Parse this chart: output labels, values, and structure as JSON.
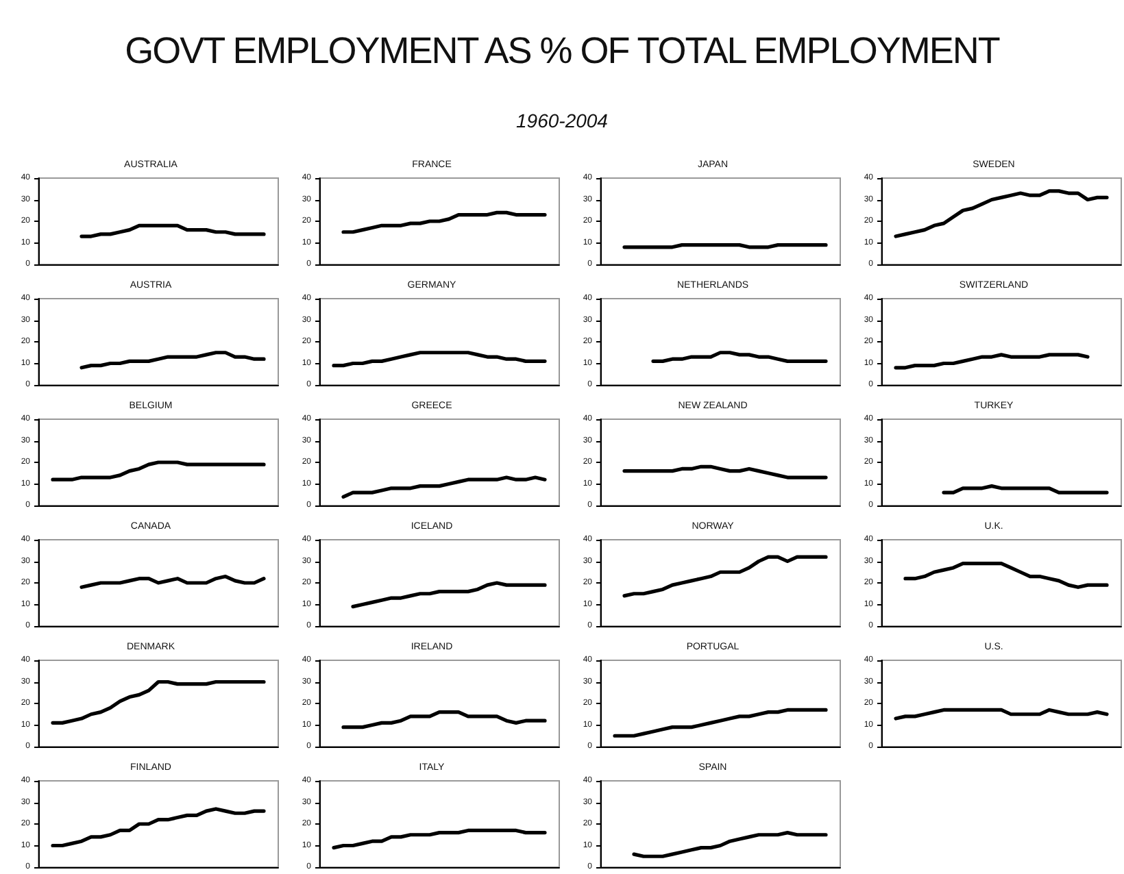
{
  "chart_data": [
    {
      "type": "other",
      "title": "GOVT EMPLOYMENT AS % OF TOTAL EMPLOYMENT",
      "subtitle": "1960-2004"
    },
    {
      "type": "line",
      "title": "AUSTRALIA",
      "categories": [
        null,
        null,
        null,
        null,
        null,
        null,
        null,
        null,
        null,
        null,
        null,
        null,
        null,
        null,
        null,
        null,
        null,
        null,
        null,
        null,
        null,
        null,
        null,
        null,
        null
      ],
      "values": [
        null,
        null,
        null,
        null,
        13,
        13,
        14,
        14,
        15,
        16,
        18,
        18,
        18,
        18,
        18,
        16,
        16,
        16,
        15,
        15,
        14,
        14,
        14,
        14,
        null
      ],
      "color": "#000000",
      "ylim": [
        0,
        40
      ],
      "yticks": [
        0,
        10,
        20,
        30,
        40
      ],
      "tick_labels": "y",
      "marker": "none",
      "line_style": "solid"
    },
    {
      "type": "line",
      "title": "FRANCE",
      "categories": [
        null,
        null,
        null,
        null,
        null,
        null,
        null,
        null,
        null,
        null,
        null,
        null,
        null,
        null,
        null,
        null,
        null,
        null,
        null,
        null,
        null,
        null,
        null,
        null,
        null
      ],
      "values": [
        null,
        null,
        15,
        15,
        16,
        17,
        18,
        18,
        18,
        19,
        19,
        20,
        20,
        21,
        23,
        23,
        23,
        23,
        24,
        24,
        23,
        23,
        23,
        23,
        null
      ],
      "color": "#000000",
      "ylim": [
        0,
        40
      ],
      "yticks": [
        0,
        10,
        20,
        30,
        40
      ],
      "tick_labels": "y",
      "marker": "none",
      "line_style": "solid"
    },
    {
      "type": "line",
      "title": "JAPAN",
      "categories": [
        null,
        null,
        null,
        null,
        null,
        null,
        null,
        null,
        null,
        null,
        null,
        null,
        null,
        null,
        null,
        null,
        null,
        null,
        null,
        null,
        null,
        null,
        null,
        null,
        null
      ],
      "values": [
        null,
        null,
        8,
        8,
        8,
        8,
        8,
        8,
        9,
        9,
        9,
        9,
        9,
        9,
        9,
        8,
        8,
        8,
        9,
        9,
        9,
        9,
        9,
        9,
        null
      ],
      "color": "#000000",
      "ylim": [
        0,
        40
      ],
      "yticks": [
        0,
        10,
        20,
        30,
        40
      ],
      "tick_labels": "y",
      "marker": "none",
      "line_style": "solid"
    },
    {
      "type": "line",
      "title": "SWEDEN",
      "categories": [
        null,
        null,
        null,
        null,
        null,
        null,
        null,
        null,
        null,
        null,
        null,
        null,
        null,
        null,
        null,
        null,
        null,
        null,
        null,
        null,
        null,
        null,
        null,
        null,
        null
      ],
      "values": [
        null,
        13,
        14,
        15,
        16,
        18,
        19,
        22,
        25,
        26,
        28,
        30,
        31,
        32,
        33,
        32,
        32,
        34,
        34,
        33,
        33,
        30,
        31,
        31,
        null
      ],
      "color": "#000000",
      "ylim": [
        0,
        40
      ],
      "yticks": [
        0,
        10,
        20,
        30,
        40
      ],
      "tick_labels": "y",
      "marker": "none",
      "line_style": "solid"
    },
    {
      "type": "line",
      "title": "AUSTRIA",
      "categories": [
        null,
        null,
        null,
        null,
        null,
        null,
        null,
        null,
        null,
        null,
        null,
        null,
        null,
        null,
        null,
        null,
        null,
        null,
        null,
        null,
        null,
        null,
        null,
        null,
        null
      ],
      "values": [
        null,
        null,
        null,
        null,
        8,
        9,
        9,
        10,
        10,
        11,
        11,
        11,
        12,
        13,
        13,
        13,
        13,
        14,
        15,
        15,
        13,
        13,
        12,
        12,
        null
      ],
      "color": "#000000",
      "ylim": [
        0,
        40
      ],
      "yticks": [
        0,
        10,
        20,
        30,
        40
      ],
      "tick_labels": "y",
      "marker": "none",
      "line_style": "solid"
    },
    {
      "type": "line",
      "title": "GERMANY",
      "categories": [
        null,
        null,
        null,
        null,
        null,
        null,
        null,
        null,
        null,
        null,
        null,
        null,
        null,
        null,
        null,
        null,
        null,
        null,
        null,
        null,
        null,
        null,
        null,
        null,
        null
      ],
      "values": [
        null,
        9,
        9,
        10,
        10,
        11,
        11,
        12,
        13,
        14,
        15,
        15,
        15,
        15,
        15,
        15,
        14,
        13,
        13,
        12,
        12,
        11,
        11,
        11,
        null
      ],
      "color": "#000000",
      "ylim": [
        0,
        40
      ],
      "yticks": [
        0,
        10,
        20,
        30,
        40
      ],
      "tick_labels": "y",
      "marker": "none",
      "line_style": "solid"
    },
    {
      "type": "line",
      "title": "NETHERLANDS",
      "categories": [
        null,
        null,
        null,
        null,
        null,
        null,
        null,
        null,
        null,
        null,
        null,
        null,
        null,
        null,
        null,
        null,
        null,
        null,
        null,
        null,
        null,
        null,
        null,
        null,
        null
      ],
      "values": [
        null,
        null,
        null,
        null,
        null,
        11,
        11,
        12,
        12,
        13,
        13,
        13,
        15,
        15,
        14,
        14,
        13,
        13,
        12,
        11,
        11,
        11,
        11,
        11,
        null
      ],
      "color": "#000000",
      "ylim": [
        0,
        40
      ],
      "yticks": [
        0,
        10,
        20,
        30,
        40
      ],
      "tick_labels": "y",
      "marker": "none",
      "line_style": "solid"
    },
    {
      "type": "line",
      "title": "SWITZERLAND",
      "categories": [
        null,
        null,
        null,
        null,
        null,
        null,
        null,
        null,
        null,
        null,
        null,
        null,
        null,
        null,
        null,
        null,
        null,
        null,
        null,
        null,
        null,
        null,
        null,
        null,
        null
      ],
      "values": [
        null,
        8,
        8,
        9,
        9,
        9,
        10,
        10,
        11,
        12,
        13,
        13,
        14,
        13,
        13,
        13,
        13,
        14,
        14,
        14,
        14,
        13,
        null,
        null,
        null
      ],
      "color": "#000000",
      "ylim": [
        0,
        40
      ],
      "yticks": [
        0,
        10,
        20,
        30,
        40
      ],
      "tick_labels": "y",
      "marker": "none",
      "line_style": "solid"
    },
    {
      "type": "line",
      "title": "BELGIUM",
      "categories": [
        null,
        null,
        null,
        null,
        null,
        null,
        null,
        null,
        null,
        null,
        null,
        null,
        null,
        null,
        null,
        null,
        null,
        null,
        null,
        null,
        null,
        null,
        null,
        null,
        null
      ],
      "values": [
        null,
        12,
        12,
        12,
        13,
        13,
        13,
        13,
        14,
        16,
        17,
        19,
        20,
        20,
        20,
        19,
        19,
        19,
        19,
        19,
        19,
        19,
        19,
        19,
        null
      ],
      "color": "#000000",
      "ylim": [
        0,
        40
      ],
      "yticks": [
        0,
        10,
        20,
        30,
        40
      ],
      "tick_labels": "y",
      "marker": "none",
      "line_style": "solid"
    },
    {
      "type": "line",
      "title": "GREECE",
      "categories": [
        null,
        null,
        null,
        null,
        null,
        null,
        null,
        null,
        null,
        null,
        null,
        null,
        null,
        null,
        null,
        null,
        null,
        null,
        null,
        null,
        null,
        null,
        null,
        null,
        null
      ],
      "values": [
        null,
        null,
        4,
        6,
        6,
        6,
        7,
        8,
        8,
        8,
        9,
        9,
        9,
        10,
        11,
        12,
        12,
        12,
        12,
        13,
        12,
        12,
        13,
        12,
        null
      ],
      "color": "#000000",
      "ylim": [
        0,
        40
      ],
      "yticks": [
        0,
        10,
        20,
        30,
        40
      ],
      "tick_labels": "y",
      "marker": "none",
      "line_style": "solid"
    },
    {
      "type": "line",
      "title": "NEW ZEALAND",
      "categories": [
        null,
        null,
        null,
        null,
        null,
        null,
        null,
        null,
        null,
        null,
        null,
        null,
        null,
        null,
        null,
        null,
        null,
        null,
        null,
        null,
        null,
        null,
        null,
        null,
        null
      ],
      "values": [
        null,
        null,
        16,
        16,
        16,
        16,
        16,
        16,
        17,
        17,
        18,
        18,
        17,
        16,
        16,
        17,
        16,
        15,
        14,
        13,
        13,
        13,
        13,
        13,
        null
      ],
      "color": "#000000",
      "ylim": [
        0,
        40
      ],
      "yticks": [
        0,
        10,
        20,
        30,
        40
      ],
      "tick_labels": "y",
      "marker": "none",
      "line_style": "solid"
    },
    {
      "type": "line",
      "title": "TURKEY",
      "categories": [
        null,
        null,
        null,
        null,
        null,
        null,
        null,
        null,
        null,
        null,
        null,
        null,
        null,
        null,
        null,
        null,
        null,
        null,
        null,
        null,
        null,
        null,
        null,
        null,
        null
      ],
      "values": [
        null,
        null,
        null,
        null,
        null,
        null,
        6,
        6,
        8,
        8,
        8,
        9,
        8,
        8,
        8,
        8,
        8,
        8,
        6,
        6,
        6,
        6,
        6,
        6,
        null
      ],
      "color": "#000000",
      "ylim": [
        0,
        40
      ],
      "yticks": [
        0,
        10,
        20,
        30,
        40
      ],
      "tick_labels": "y",
      "marker": "none",
      "line_style": "solid"
    },
    {
      "type": "line",
      "title": "CANADA",
      "categories": [
        null,
        null,
        null,
        null,
        null,
        null,
        null,
        null,
        null,
        null,
        null,
        null,
        null,
        null,
        null,
        null,
        null,
        null,
        null,
        null,
        null,
        null,
        null,
        null,
        null
      ],
      "values": [
        null,
        null,
        null,
        null,
        18,
        19,
        20,
        20,
        20,
        21,
        22,
        22,
        20,
        21,
        22,
        20,
        20,
        20,
        22,
        23,
        21,
        20,
        20,
        22,
        null
      ],
      "color": "#000000",
      "ylim": [
        0,
        40
      ],
      "yticks": [
        0,
        10,
        20,
        30,
        40
      ],
      "tick_labels": "y",
      "marker": "none",
      "line_style": "solid"
    },
    {
      "type": "line",
      "title": "ICELAND",
      "categories": [
        null,
        null,
        null,
        null,
        null,
        null,
        null,
        null,
        null,
        null,
        null,
        null,
        null,
        null,
        null,
        null,
        null,
        null,
        null,
        null,
        null,
        null,
        null,
        null,
        null
      ],
      "values": [
        null,
        null,
        null,
        9,
        10,
        11,
        12,
        13,
        13,
        14,
        15,
        15,
        16,
        16,
        16,
        16,
        17,
        19,
        20,
        19,
        19,
        19,
        19,
        19,
        null
      ],
      "color": "#000000",
      "ylim": [
        0,
        40
      ],
      "yticks": [
        0,
        10,
        20,
        30,
        40
      ],
      "tick_labels": "y",
      "marker": "none",
      "line_style": "solid"
    },
    {
      "type": "line",
      "title": "NORWAY",
      "categories": [
        null,
        null,
        null,
        null,
        null,
        null,
        null,
        null,
        null,
        null,
        null,
        null,
        null,
        null,
        null,
        null,
        null,
        null,
        null,
        null,
        null,
        null,
        null,
        null,
        null
      ],
      "values": [
        null,
        null,
        14,
        15,
        15,
        16,
        17,
        19,
        20,
        21,
        22,
        23,
        25,
        25,
        25,
        27,
        30,
        32,
        32,
        30,
        32,
        32,
        32,
        32,
        null
      ],
      "color": "#000000",
      "ylim": [
        0,
        40
      ],
      "yticks": [
        0,
        10,
        20,
        30,
        40
      ],
      "tick_labels": "y",
      "marker": "none",
      "line_style": "solid"
    },
    {
      "type": "line",
      "title": "U.K.",
      "categories": [
        null,
        null,
        null,
        null,
        null,
        null,
        null,
        null,
        null,
        null,
        null,
        null,
        null,
        null,
        null,
        null,
        null,
        null,
        null,
        null,
        null,
        null,
        null,
        null,
        null
      ],
      "values": [
        null,
        null,
        22,
        22,
        23,
        25,
        26,
        27,
        29,
        29,
        29,
        29,
        29,
        27,
        25,
        23,
        23,
        22,
        21,
        19,
        18,
        19,
        19,
        19,
        null
      ],
      "color": "#000000",
      "ylim": [
        0,
        40
      ],
      "yticks": [
        0,
        10,
        20,
        30,
        40
      ],
      "tick_labels": "y",
      "marker": "none",
      "line_style": "solid"
    },
    {
      "type": "line",
      "title": "DENMARK",
      "categories": [
        null,
        null,
        null,
        null,
        null,
        null,
        null,
        null,
        null,
        null,
        null,
        null,
        null,
        null,
        null,
        null,
        null,
        null,
        null,
        null,
        null,
        null,
        null,
        null,
        null
      ],
      "values": [
        null,
        11,
        11,
        12,
        13,
        15,
        16,
        18,
        21,
        23,
        24,
        26,
        30,
        30,
        29,
        29,
        29,
        29,
        30,
        30,
        30,
        30,
        30,
        30,
        null
      ],
      "color": "#000000",
      "ylim": [
        0,
        40
      ],
      "yticks": [
        0,
        10,
        20,
        30,
        40
      ],
      "tick_labels": "y",
      "marker": "none",
      "line_style": "solid"
    },
    {
      "type": "line",
      "title": "IRELAND",
      "categories": [
        null,
        null,
        null,
        null,
        null,
        null,
        null,
        null,
        null,
        null,
        null,
        null,
        null,
        null,
        null,
        null,
        null,
        null,
        null,
        null,
        null,
        null,
        null,
        null,
        null
      ],
      "values": [
        null,
        null,
        9,
        9,
        9,
        10,
        11,
        11,
        12,
        14,
        14,
        14,
        16,
        16,
        16,
        14,
        14,
        14,
        14,
        12,
        11,
        12,
        12,
        12,
        null
      ],
      "color": "#000000",
      "ylim": [
        0,
        40
      ],
      "yticks": [
        0,
        10,
        20,
        30,
        40
      ],
      "tick_labels": "y",
      "marker": "none",
      "line_style": "solid"
    },
    {
      "type": "line",
      "title": "PORTUGAL",
      "categories": [
        null,
        null,
        null,
        null,
        null,
        null,
        null,
        null,
        null,
        null,
        null,
        null,
        null,
        null,
        null,
        null,
        null,
        null,
        null,
        null,
        null,
        null,
        null,
        null,
        null
      ],
      "values": [
        null,
        5,
        5,
        5,
        6,
        7,
        8,
        9,
        9,
        9,
        10,
        11,
        12,
        13,
        14,
        14,
        15,
        16,
        16,
        17,
        17,
        17,
        17,
        17,
        null
      ],
      "color": "#000000",
      "ylim": [
        0,
        40
      ],
      "yticks": [
        0,
        10,
        20,
        30,
        40
      ],
      "tick_labels": "y",
      "marker": "none",
      "line_style": "solid"
    },
    {
      "type": "line",
      "title": "U.S.",
      "categories": [
        null,
        null,
        null,
        null,
        null,
        null,
        null,
        null,
        null,
        null,
        null,
        null,
        null,
        null,
        null,
        null,
        null,
        null,
        null,
        null,
        null,
        null,
        null,
        null,
        null
      ],
      "values": [
        null,
        13,
        14,
        14,
        15,
        16,
        17,
        17,
        17,
        17,
        17,
        17,
        17,
        15,
        15,
        15,
        15,
        17,
        16,
        15,
        15,
        15,
        16,
        15,
        null
      ],
      "color": "#000000",
      "ylim": [
        0,
        40
      ],
      "yticks": [
        0,
        10,
        20,
        30,
        40
      ],
      "tick_labels": "y",
      "marker": "none",
      "line_style": "solid"
    },
    {
      "type": "line",
      "title": "FINLAND",
      "categories": [
        null,
        null,
        null,
        null,
        null,
        null,
        null,
        null,
        null,
        null,
        null,
        null,
        null,
        null,
        null,
        null,
        null,
        null,
        null,
        null,
        null,
        null,
        null,
        null,
        null
      ],
      "values": [
        null,
        10,
        10,
        11,
        12,
        14,
        14,
        15,
        17,
        17,
        20,
        20,
        22,
        22,
        23,
        24,
        24,
        26,
        27,
        26,
        25,
        25,
        26,
        26,
        null
      ],
      "color": "#000000",
      "ylim": [
        0,
        40
      ],
      "yticks": [
        0,
        10,
        20,
        30,
        40
      ],
      "tick_labels": "y",
      "marker": "none",
      "line_style": "solid"
    },
    {
      "type": "line",
      "title": "ITALY",
      "categories": [
        null,
        null,
        null,
        null,
        null,
        null,
        null,
        null,
        null,
        null,
        null,
        null,
        null,
        null,
        null,
        null,
        null,
        null,
        null,
        null,
        null,
        null,
        null,
        null,
        null
      ],
      "values": [
        null,
        9,
        10,
        10,
        11,
        12,
        12,
        14,
        14,
        15,
        15,
        15,
        16,
        16,
        16,
        17,
        17,
        17,
        17,
        17,
        17,
        16,
        16,
        16,
        null
      ],
      "color": "#000000",
      "ylim": [
        0,
        40
      ],
      "yticks": [
        0,
        10,
        20,
        30,
        40
      ],
      "tick_labels": "y",
      "marker": "none",
      "line_style": "solid"
    },
    {
      "type": "line",
      "title": "SPAIN",
      "categories": [
        null,
        null,
        null,
        null,
        null,
        null,
        null,
        null,
        null,
        null,
        null,
        null,
        null,
        null,
        null,
        null,
        null,
        null,
        null,
        null,
        null,
        null,
        null,
        null,
        null
      ],
      "values": [
        null,
        null,
        null,
        6,
        5,
        5,
        5,
        6,
        7,
        8,
        9,
        9,
        10,
        12,
        13,
        14,
        15,
        15,
        15,
        16,
        15,
        15,
        15,
        15,
        null
      ],
      "color": "#000000",
      "ylim": [
        0,
        40
      ],
      "yticks": [
        0,
        10,
        20,
        30,
        40
      ],
      "tick_labels": "y",
      "marker": "none",
      "line_style": "solid"
    }
  ]
}
